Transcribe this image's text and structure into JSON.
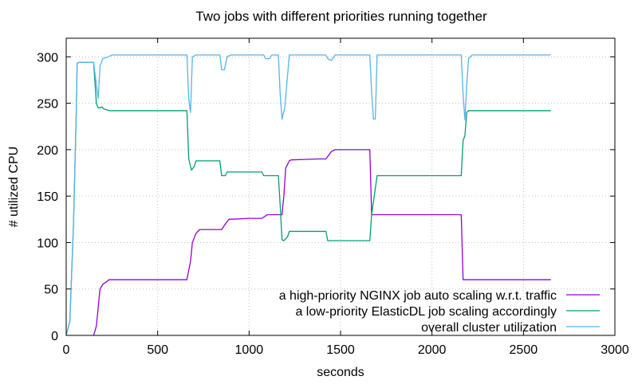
{
  "chart_data": {
    "type": "line",
    "title": "Two jobs with different priorities running together",
    "xlabel": "seconds",
    "ylabel": "# utilized CPU",
    "xlim": [
      0,
      3000
    ],
    "ylim": [
      0,
      320
    ],
    "xticks": [
      0,
      500,
      1000,
      1500,
      2000,
      2500,
      3000
    ],
    "yticks": [
      0,
      50,
      100,
      150,
      200,
      250,
      300
    ],
    "grid": true,
    "legend_position": "bottom-right",
    "series": [
      {
        "name": "a high-priority NGINX job auto scaling w.r.t. traffic",
        "color": "#9400d3",
        "points": [
          [
            150,
            0
          ],
          [
            165,
            10
          ],
          [
            175,
            30
          ],
          [
            185,
            50
          ],
          [
            200,
            55
          ],
          [
            215,
            57
          ],
          [
            235,
            60
          ],
          [
            660,
            60
          ],
          [
            680,
            80
          ],
          [
            690,
            100
          ],
          [
            710,
            110
          ],
          [
            730,
            114
          ],
          [
            850,
            114
          ],
          [
            870,
            120
          ],
          [
            890,
            125
          ],
          [
            1000,
            126
          ],
          [
            1070,
            126
          ],
          [
            1100,
            130
          ],
          [
            1180,
            130
          ],
          [
            1190,
            150
          ],
          [
            1200,
            180
          ],
          [
            1220,
            188
          ],
          [
            1230,
            189
          ],
          [
            1380,
            190
          ],
          [
            1420,
            190
          ],
          [
            1450,
            198
          ],
          [
            1470,
            200
          ],
          [
            1660,
            200
          ],
          [
            1670,
            130
          ],
          [
            1700,
            130
          ],
          [
            2160,
            130
          ],
          [
            2170,
            60
          ],
          [
            2650,
            60
          ]
        ]
      },
      {
        "name": "a low-priority ElasticDL job scaling accordingly",
        "color": "#009e73",
        "points": [
          [
            0,
            0
          ],
          [
            20,
            15
          ],
          [
            40,
            120
          ],
          [
            55,
            240
          ],
          [
            60,
            293
          ],
          [
            70,
            294
          ],
          [
            150,
            294
          ],
          [
            165,
            250
          ],
          [
            175,
            245
          ],
          [
            185,
            245
          ],
          [
            195,
            246
          ],
          [
            205,
            244
          ],
          [
            220,
            243
          ],
          [
            235,
            242
          ],
          [
            660,
            242
          ],
          [
            670,
            190
          ],
          [
            685,
            178
          ],
          [
            700,
            182
          ],
          [
            710,
            188
          ],
          [
            840,
            188
          ],
          [
            850,
            172
          ],
          [
            870,
            172
          ],
          [
            880,
            176
          ],
          [
            1070,
            176
          ],
          [
            1080,
            172
          ],
          [
            1160,
            172
          ],
          [
            1170,
            140
          ],
          [
            1180,
            103
          ],
          [
            1190,
            102
          ],
          [
            1210,
            106
          ],
          [
            1220,
            112
          ],
          [
            1420,
            112
          ],
          [
            1430,
            102
          ],
          [
            1660,
            102
          ],
          [
            1670,
            130
          ],
          [
            1700,
            172
          ],
          [
            2160,
            172
          ],
          [
            2170,
            210
          ],
          [
            2180,
            215
          ],
          [
            2190,
            240
          ],
          [
            2200,
            242
          ],
          [
            2650,
            242
          ]
        ]
      },
      {
        "name": "overall cluster utilization",
        "color": "#56b4e9",
        "points": [
          [
            0,
            0
          ],
          [
            20,
            15
          ],
          [
            40,
            120
          ],
          [
            55,
            240
          ],
          [
            60,
            293
          ],
          [
            70,
            294
          ],
          [
            150,
            294
          ],
          [
            165,
            270
          ],
          [
            175,
            255
          ],
          [
            185,
            290
          ],
          [
            200,
            298
          ],
          [
            230,
            300
          ],
          [
            250,
            302
          ],
          [
            660,
            302
          ],
          [
            670,
            255
          ],
          [
            680,
            240
          ],
          [
            690,
            300
          ],
          [
            710,
            302
          ],
          [
            840,
            302
          ],
          [
            850,
            286
          ],
          [
            865,
            286
          ],
          [
            880,
            300
          ],
          [
            900,
            302
          ],
          [
            1080,
            302
          ],
          [
            1090,
            298
          ],
          [
            1110,
            298
          ],
          [
            1125,
            302
          ],
          [
            1160,
            302
          ],
          [
            1170,
            260
          ],
          [
            1180,
            233
          ],
          [
            1195,
            245
          ],
          [
            1220,
            302
          ],
          [
            1420,
            302
          ],
          [
            1430,
            298
          ],
          [
            1450,
            296
          ],
          [
            1470,
            302
          ],
          [
            1660,
            302
          ],
          [
            1670,
            262
          ],
          [
            1680,
            233
          ],
          [
            1690,
            233
          ],
          [
            1700,
            302
          ],
          [
            2160,
            302
          ],
          [
            2170,
            260
          ],
          [
            2180,
            232
          ],
          [
            2190,
            270
          ],
          [
            2200,
            298
          ],
          [
            2220,
            302
          ],
          [
            2650,
            302
          ]
        ]
      }
    ]
  }
}
